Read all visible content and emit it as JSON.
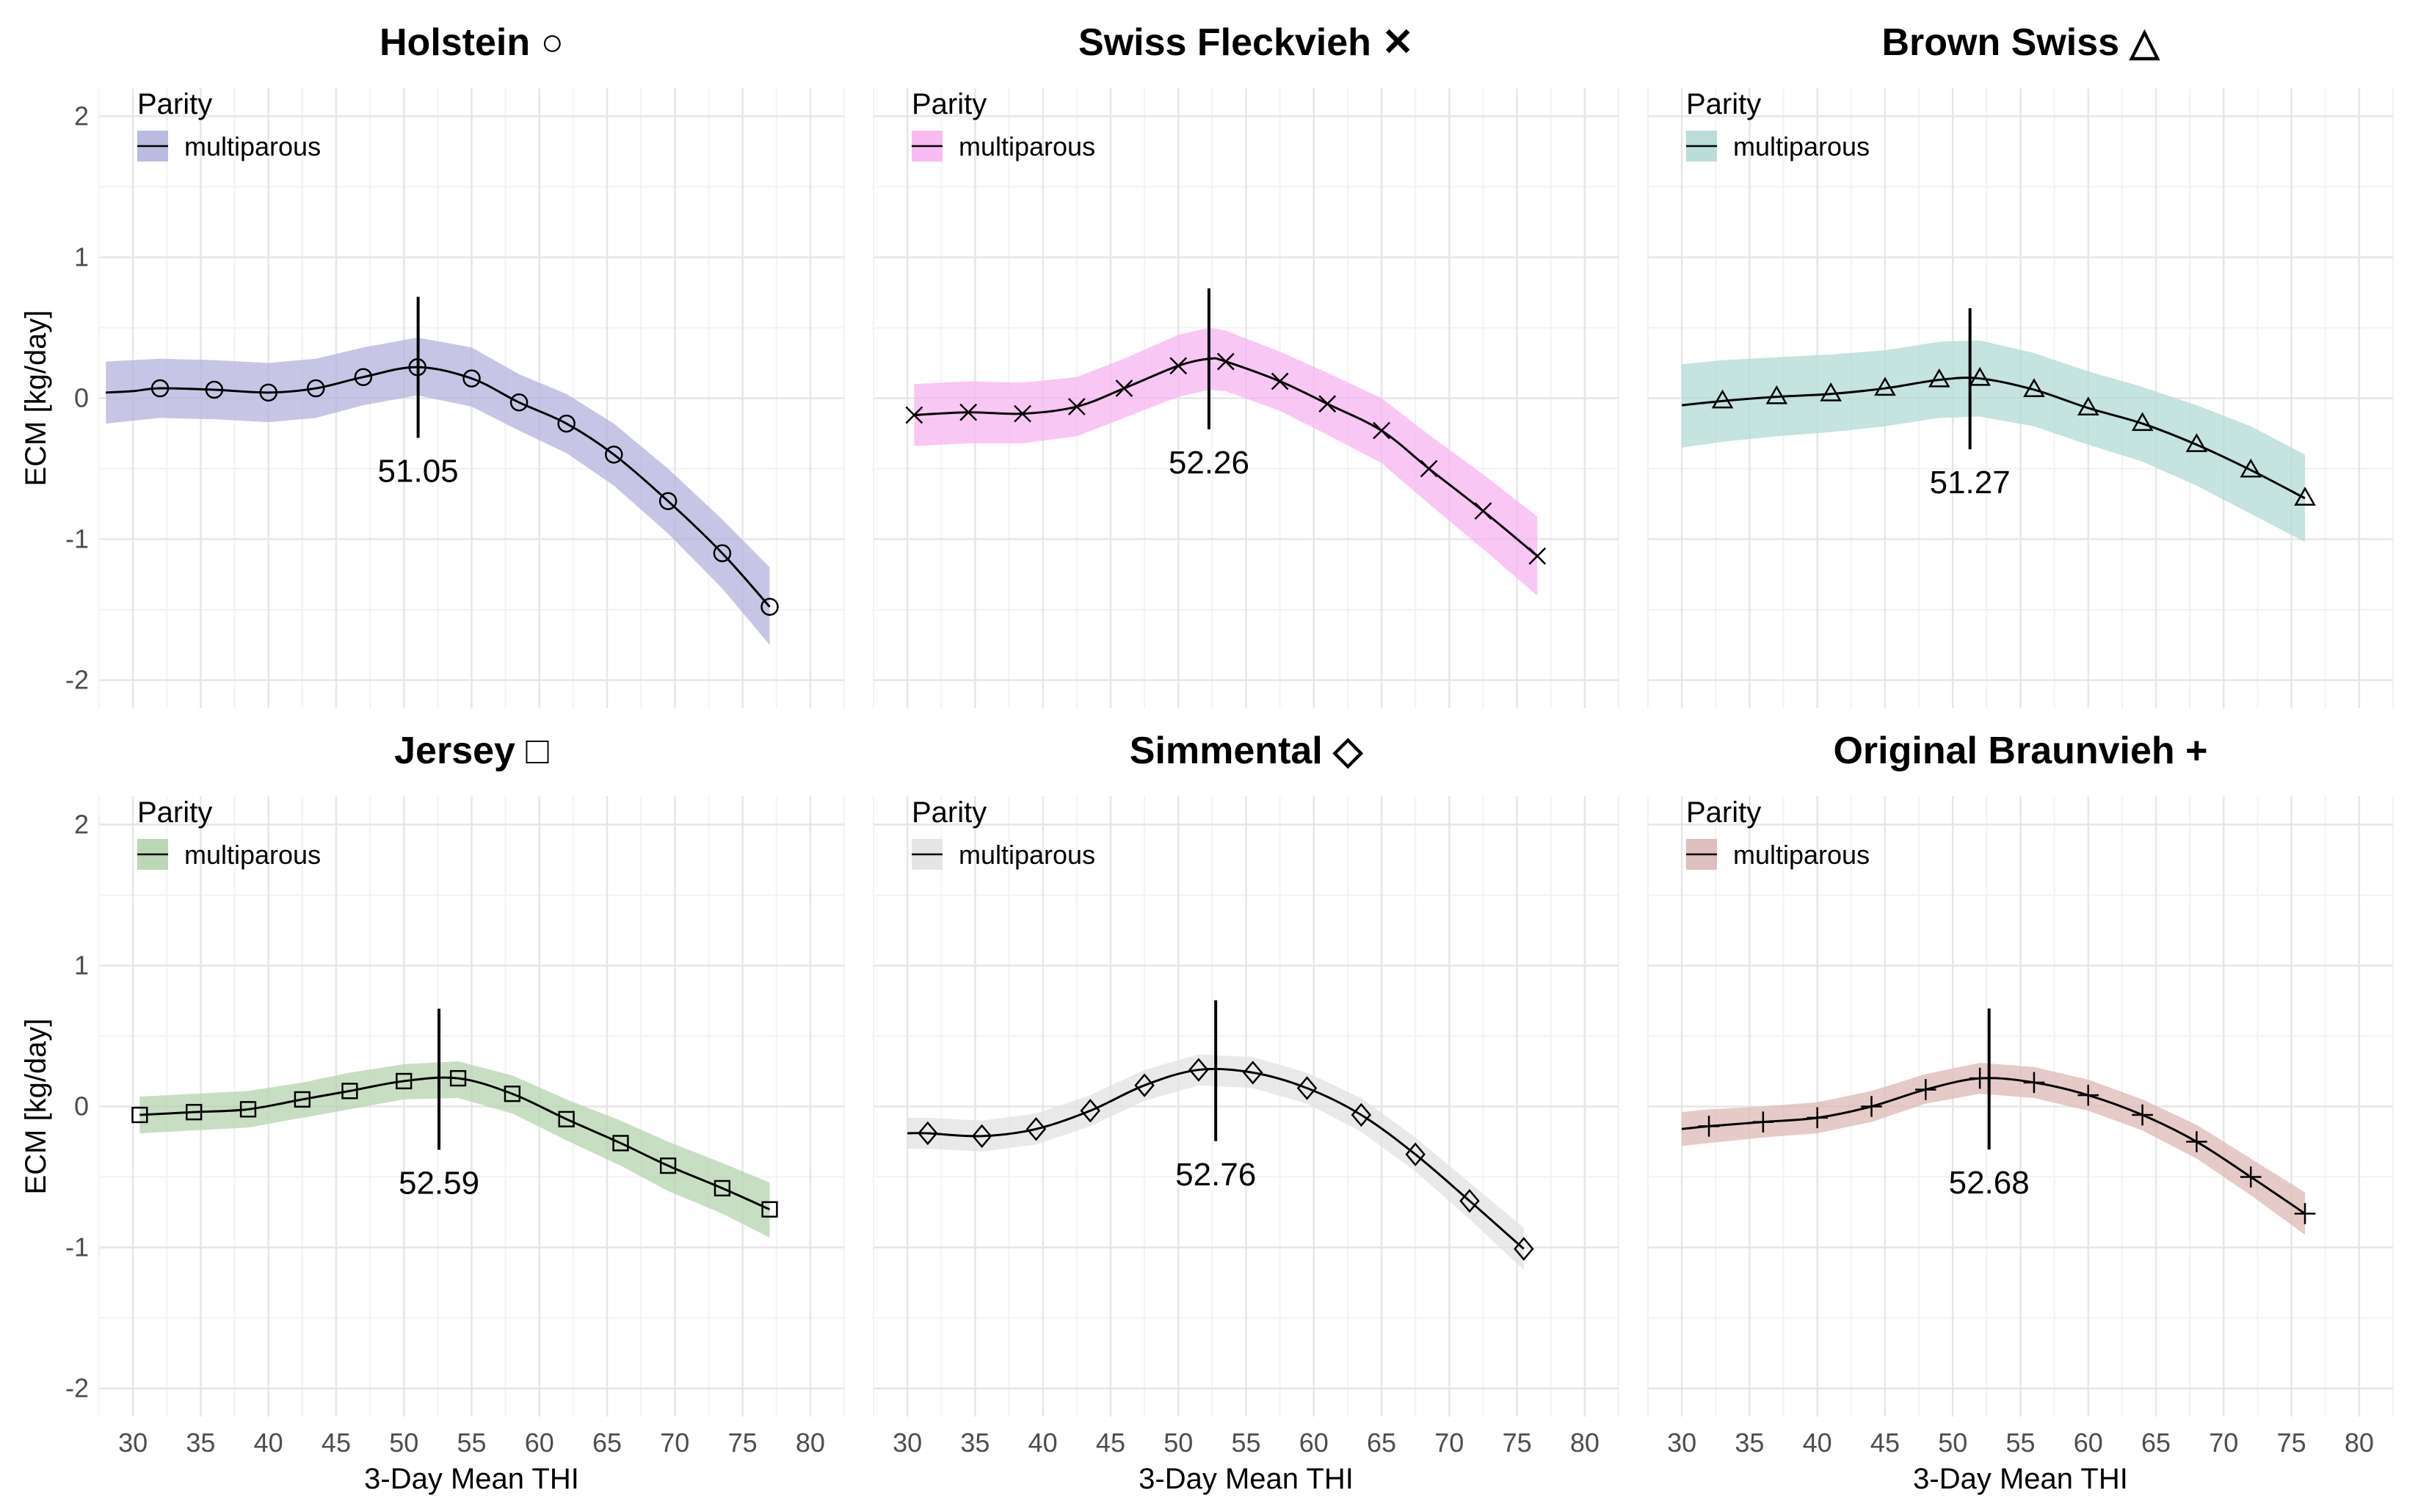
{
  "chart_data": {
    "type": "line",
    "xlabel": "3-Day Mean THI",
    "ylabel": "ECM [kg/day]",
    "xlim": [
      27.5,
      82.5
    ],
    "ylim": [
      -2.2,
      2.2
    ],
    "xticks": [
      30,
      35,
      40,
      45,
      50,
      55,
      60,
      65,
      70,
      75,
      80
    ],
    "yticks": [
      -2,
      -1,
      0,
      1,
      2
    ],
    "legend_title": "Parity",
    "legend_position": "top-left",
    "grid": true,
    "panels": [
      {
        "title": "Holstein",
        "symbol": "○",
        "marker": "circle",
        "series_name": "multiparous",
        "band_color": "#b4b2dc",
        "threshold": 51.05,
        "threshold_label": "51.05",
        "x": [
          28,
          30,
          32,
          36,
          40,
          43.5,
          47,
          51,
          55,
          58.5,
          62,
          65.5,
          69.5,
          73.5,
          77
        ],
        "y": [
          0.04,
          0.05,
          0.07,
          0.06,
          0.04,
          0.07,
          0.15,
          0.22,
          0.14,
          -0.03,
          -0.18,
          -0.4,
          -0.73,
          -1.1,
          -1.48
        ],
        "lower": [
          -0.18,
          -0.16,
          -0.14,
          -0.15,
          -0.17,
          -0.14,
          -0.05,
          0.02,
          -0.06,
          -0.23,
          -0.39,
          -0.62,
          -0.96,
          -1.35,
          -1.75
        ],
        "upper": [
          0.26,
          0.27,
          0.28,
          0.27,
          0.25,
          0.28,
          0.36,
          0.43,
          0.36,
          0.17,
          0.03,
          -0.18,
          -0.5,
          -0.86,
          -1.2
        ],
        "markers_x": [
          32,
          36,
          40,
          43.5,
          47,
          51,
          55,
          58.5,
          62,
          65.5,
          69.5,
          73.5,
          77
        ],
        "markers_y": [
          0.07,
          0.06,
          0.04,
          0.07,
          0.15,
          0.22,
          0.14,
          -0.03,
          -0.18,
          -0.4,
          -0.73,
          -1.1,
          -1.48
        ]
      },
      {
        "title": "Swiss Fleckvieh",
        "symbol": "✕",
        "marker": "x",
        "series_name": "multiparous",
        "band_color": "#f7b4f0",
        "threshold": 52.26,
        "threshold_label": "52.26",
        "x": [
          30.5,
          34.5,
          38.5,
          42.5,
          46,
          50,
          52.3,
          53.5,
          57.5,
          61,
          65,
          68.5,
          72.5,
          76.5
        ],
        "y": [
          -0.12,
          -0.1,
          -0.11,
          -0.06,
          0.07,
          0.23,
          0.28,
          0.26,
          0.12,
          -0.04,
          -0.23,
          -0.5,
          -0.8,
          -1.12
        ],
        "lower": [
          -0.34,
          -0.32,
          -0.32,
          -0.27,
          -0.14,
          0.01,
          0.06,
          0.05,
          -0.09,
          -0.26,
          -0.46,
          -0.75,
          -1.07,
          -1.4
        ],
        "upper": [
          0.1,
          0.12,
          0.11,
          0.15,
          0.28,
          0.45,
          0.5,
          0.48,
          0.33,
          0.18,
          0.0,
          -0.26,
          -0.54,
          -0.84
        ],
        "markers_x": [
          30.5,
          34.5,
          38.5,
          42.5,
          46,
          50,
          53.5,
          57.5,
          61,
          65,
          68.5,
          72.5,
          76.5
        ],
        "markers_y": [
          -0.12,
          -0.1,
          -0.11,
          -0.06,
          0.07,
          0.23,
          0.26,
          0.12,
          -0.04,
          -0.23,
          -0.5,
          -0.8,
          -1.12
        ]
      },
      {
        "title": "Brown Swiss",
        "symbol": "△",
        "marker": "triangle",
        "series_name": "multiparous",
        "band_color": "#b2d9d4",
        "threshold": 51.27,
        "threshold_label": "51.27",
        "x": [
          30,
          33,
          37,
          41,
          45,
          49,
          52,
          56,
          60,
          64,
          68,
          72,
          76
        ],
        "y": [
          -0.05,
          -0.02,
          0.01,
          0.03,
          0.07,
          0.13,
          0.14,
          0.06,
          -0.07,
          -0.18,
          -0.33,
          -0.51,
          -0.71
        ],
        "lower": [
          -0.35,
          -0.31,
          -0.27,
          -0.24,
          -0.2,
          -0.14,
          -0.13,
          -0.2,
          -0.33,
          -0.45,
          -0.62,
          -0.82,
          -1.02
        ],
        "upper": [
          0.24,
          0.27,
          0.29,
          0.31,
          0.34,
          0.4,
          0.41,
          0.32,
          0.19,
          0.08,
          -0.05,
          -0.2,
          -0.4
        ],
        "markers_x": [
          33,
          37,
          41,
          45,
          49,
          52,
          56,
          60,
          64,
          68,
          72,
          76
        ],
        "markers_y": [
          -0.02,
          0.01,
          0.03,
          0.07,
          0.13,
          0.14,
          0.06,
          -0.07,
          -0.18,
          -0.33,
          -0.51,
          -0.71
        ]
      },
      {
        "title": "Jersey",
        "symbol": "□",
        "marker": "square",
        "series_name": "multiparous",
        "band_color": "#b5d3ad",
        "threshold": 52.59,
        "threshold_label": "52.59",
        "x": [
          30.5,
          34.5,
          38.5,
          42.5,
          46,
          50,
          54,
          58,
          62,
          66,
          69.5,
          73.5,
          77
        ],
        "y": [
          -0.06,
          -0.04,
          -0.02,
          0.05,
          0.11,
          0.18,
          0.2,
          0.09,
          -0.09,
          -0.26,
          -0.42,
          -0.58,
          -0.73
        ],
        "lower": [
          -0.19,
          -0.17,
          -0.15,
          -0.08,
          -0.02,
          0.05,
          0.06,
          -0.05,
          -0.24,
          -0.42,
          -0.6,
          -0.76,
          -0.93
        ],
        "upper": [
          0.07,
          0.09,
          0.11,
          0.17,
          0.24,
          0.3,
          0.32,
          0.22,
          0.05,
          -0.1,
          -0.25,
          -0.4,
          -0.54
        ],
        "markers_x": [
          30.5,
          34.5,
          38.5,
          42.5,
          46,
          50,
          54,
          58,
          62,
          66,
          69.5,
          73.5,
          77
        ],
        "markers_y": [
          -0.06,
          -0.04,
          -0.02,
          0.05,
          0.11,
          0.18,
          0.2,
          0.09,
          -0.09,
          -0.26,
          -0.42,
          -0.58,
          -0.73
        ]
      },
      {
        "title": "Simmental",
        "symbol": "◇",
        "marker": "diamond",
        "series_name": "multiparous",
        "band_color": "#e2e2e2",
        "threshold": 52.76,
        "threshold_label": "52.76",
        "x": [
          30,
          31.5,
          35.5,
          39.5,
          43.5,
          47.5,
          51.5,
          55.5,
          59.5,
          63.5,
          67.5,
          71.5,
          75.5
        ],
        "y": [
          -0.19,
          -0.19,
          -0.21,
          -0.16,
          -0.03,
          0.15,
          0.26,
          0.24,
          0.13,
          -0.06,
          -0.34,
          -0.67,
          -1.01
        ],
        "lower": [
          -0.3,
          -0.3,
          -0.32,
          -0.27,
          -0.14,
          0.04,
          0.15,
          0.13,
          0.02,
          -0.18,
          -0.46,
          -0.8,
          -1.16
        ],
        "upper": [
          -0.08,
          -0.08,
          -0.1,
          -0.05,
          0.08,
          0.26,
          0.37,
          0.35,
          0.24,
          0.06,
          -0.22,
          -0.54,
          -0.86
        ],
        "markers_x": [
          31.5,
          35.5,
          39.5,
          43.5,
          47.5,
          51.5,
          55.5,
          59.5,
          63.5,
          67.5,
          71.5,
          75.5
        ],
        "markers_y": [
          -0.19,
          -0.21,
          -0.16,
          -0.03,
          0.15,
          0.26,
          0.24,
          0.13,
          -0.06,
          -0.34,
          -0.67,
          -1.01
        ]
      },
      {
        "title": "Original Braunvieh",
        "symbol": "+",
        "marker": "plus",
        "series_name": "multiparous",
        "band_color": "#dcb8b6",
        "threshold": 52.68,
        "threshold_label": "52.68",
        "x": [
          30,
          32,
          36,
          40,
          44,
          48,
          52,
          56,
          60,
          64,
          68,
          72,
          76
        ],
        "y": [
          -0.16,
          -0.14,
          -0.11,
          -0.08,
          0.0,
          0.12,
          0.2,
          0.17,
          0.08,
          -0.06,
          -0.25,
          -0.5,
          -0.76
        ],
        "lower": [
          -0.28,
          -0.26,
          -0.22,
          -0.19,
          -0.11,
          0.02,
          0.09,
          0.06,
          -0.03,
          -0.17,
          -0.37,
          -0.63,
          -0.91
        ],
        "upper": [
          -0.04,
          -0.02,
          0.0,
          0.03,
          0.11,
          0.23,
          0.31,
          0.28,
          0.19,
          0.05,
          -0.13,
          -0.37,
          -0.61
        ],
        "markers_x": [
          32,
          36,
          40,
          44,
          48,
          52,
          56,
          60,
          64,
          68,
          72,
          76
        ],
        "markers_y": [
          -0.14,
          -0.11,
          -0.08,
          0.0,
          0.12,
          0.2,
          0.17,
          0.08,
          -0.06,
          -0.25,
          -0.5,
          -0.76
        ]
      }
    ]
  }
}
